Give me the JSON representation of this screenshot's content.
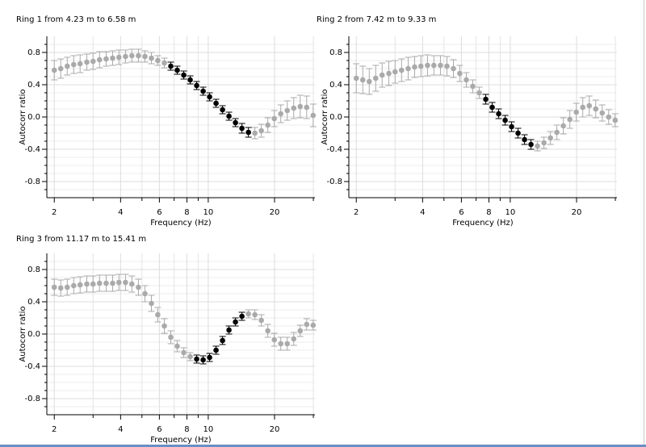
{
  "chart_data": [
    {
      "type": "scatter",
      "title": "Ring 1 from 4.23 m to 6.58 m",
      "xlabel": "Frequency (Hz)",
      "ylabel": "Autocorr ratio",
      "xscale": "log",
      "grid": true,
      "xlim": [
        1.85,
        30.5
      ],
      "ylim": [
        -1.0,
        1.0
      ],
      "xticks": [
        2,
        4,
        6,
        8,
        10,
        20
      ],
      "xminorticks": [
        3,
        5,
        7,
        9,
        30
      ],
      "yticks": [
        -0.8,
        -0.4,
        {
          "value": 0,
          "label": "0.0"
        },
        0.4,
        0.8
      ],
      "yminorticks": [
        -0.9,
        -0.7,
        -0.6,
        -0.5,
        -0.3,
        -0.2,
        -0.1,
        0.1,
        0.2,
        0.3,
        0.5,
        0.6,
        0.7,
        0.9
      ],
      "series": [
        {
          "color": "#aaaaaa",
          "x": [
            2.0,
            2.14,
            2.29,
            2.45,
            2.62,
            2.81,
            3.0,
            3.21,
            3.44,
            3.68,
            3.93,
            4.21,
            4.5,
            4.82,
            5.16,
            5.52,
            5.9,
            6.32,
            16.28,
            17.42,
            18.64,
            19.95,
            21.34,
            22.84,
            24.44,
            26.15,
            27.98,
            29.94
          ],
          "values": [
            0.58,
            0.6,
            0.63,
            0.65,
            0.66,
            0.68,
            0.69,
            0.71,
            0.72,
            0.73,
            0.74,
            0.75,
            0.76,
            0.76,
            0.75,
            0.73,
            0.7,
            0.67,
            -0.2,
            -0.17,
            -0.1,
            -0.02,
            0.04,
            0.08,
            0.11,
            0.13,
            0.12,
            0.02
          ],
          "errors": [
            0.12,
            0.12,
            0.11,
            0.11,
            0.11,
            0.1,
            0.1,
            0.1,
            0.09,
            0.09,
            0.09,
            0.08,
            0.08,
            0.08,
            0.07,
            0.07,
            0.06,
            0.06,
            0.07,
            0.08,
            0.09,
            0.1,
            0.11,
            0.12,
            0.13,
            0.14,
            0.14,
            0.14
          ]
        },
        {
          "color": "#000000",
          "x": [
            6.76,
            7.23,
            7.74,
            8.28,
            8.86,
            9.48,
            10.14,
            10.85,
            11.61,
            12.42,
            13.29,
            14.22,
            15.22
          ],
          "values": [
            0.63,
            0.58,
            0.52,
            0.46,
            0.39,
            0.32,
            0.25,
            0.17,
            0.09,
            0.01,
            -0.07,
            -0.14,
            -0.19
          ],
          "errors": [
            0.05,
            0.05,
            0.05,
            0.05,
            0.05,
            0.05,
            0.05,
            0.05,
            0.05,
            0.05,
            0.05,
            0.06,
            0.06
          ]
        }
      ]
    },
    {
      "type": "scatter",
      "title": "Ring 2 from 7.42 m to 9.33 m",
      "xlabel": "Frequency (Hz)",
      "ylabel": "Autocorr ratio",
      "xscale": "log",
      "grid": true,
      "xlim": [
        1.85,
        30.5
      ],
      "ylim": [
        -1.0,
        1.0
      ],
      "xticks": [
        2,
        4,
        6,
        8,
        10,
        20
      ],
      "xminorticks": [
        3,
        5,
        7,
        9,
        30
      ],
      "yticks": [
        -0.8,
        -0.4,
        {
          "value": 0,
          "label": "0.0"
        },
        0.4,
        0.8
      ],
      "yminorticks": [
        -0.9,
        -0.7,
        -0.6,
        -0.5,
        -0.3,
        -0.2,
        -0.1,
        0.1,
        0.2,
        0.3,
        0.5,
        0.6,
        0.7,
        0.9
      ],
      "series": [
        {
          "color": "#aaaaaa",
          "x": [
            2.0,
            2.14,
            2.29,
            2.45,
            2.62,
            2.81,
            3.0,
            3.21,
            3.44,
            3.68,
            3.93,
            4.21,
            4.5,
            4.82,
            5.16,
            5.52,
            5.9,
            6.32,
            6.76,
            7.23,
            13.29,
            14.22,
            15.22,
            16.28,
            17.42,
            18.64,
            19.95,
            21.34,
            22.84,
            24.44,
            26.15,
            27.98,
            29.94
          ],
          "values": [
            0.48,
            0.46,
            0.44,
            0.48,
            0.52,
            0.54,
            0.56,
            0.58,
            0.6,
            0.62,
            0.63,
            0.64,
            0.64,
            0.64,
            0.63,
            0.6,
            0.54,
            0.46,
            0.38,
            0.3,
            -0.36,
            -0.32,
            -0.26,
            -0.19,
            -0.11,
            -0.03,
            0.06,
            0.12,
            0.14,
            0.1,
            0.05,
            0.0,
            -0.04
          ],
          "errors": [
            0.18,
            0.17,
            0.16,
            0.16,
            0.15,
            0.15,
            0.14,
            0.14,
            0.14,
            0.13,
            0.13,
            0.13,
            0.12,
            0.12,
            0.12,
            0.11,
            0.1,
            0.09,
            0.08,
            0.07,
            0.06,
            0.07,
            0.08,
            0.09,
            0.1,
            0.11,
            0.11,
            0.12,
            0.12,
            0.11,
            0.1,
            0.09,
            0.08
          ]
        },
        {
          "color": "#000000",
          "x": [
            7.74,
            8.28,
            8.86,
            9.48,
            10.14,
            10.85,
            11.61,
            12.42
          ],
          "values": [
            0.22,
            0.12,
            0.04,
            -0.04,
            -0.12,
            -0.2,
            -0.28,
            -0.34
          ],
          "errors": [
            0.06,
            0.06,
            0.06,
            0.06,
            0.06,
            0.06,
            0.06,
            0.06
          ]
        }
      ]
    },
    {
      "type": "scatter",
      "title": "Ring 3 from 11.17 m to 15.41 m",
      "xlabel": "Frequency (Hz)",
      "ylabel": "Autocorr ratio",
      "xscale": "log",
      "grid": true,
      "xlim": [
        1.85,
        30.5
      ],
      "ylim": [
        -1.0,
        1.0
      ],
      "xticks": [
        2,
        4,
        6,
        8,
        10,
        20
      ],
      "xminorticks": [
        3,
        5,
        7,
        9,
        30
      ],
      "yticks": [
        -0.8,
        -0.4,
        {
          "value": 0,
          "label": "0.0"
        },
        0.4,
        0.8
      ],
      "yminorticks": [
        -0.9,
        -0.7,
        -0.6,
        -0.5,
        -0.3,
        -0.2,
        -0.1,
        0.1,
        0.2,
        0.3,
        0.5,
        0.6,
        0.7,
        0.9
      ],
      "series": [
        {
          "color": "#aaaaaa",
          "x": [
            2.0,
            2.14,
            2.29,
            2.45,
            2.62,
            2.81,
            3.0,
            3.21,
            3.44,
            3.68,
            3.93,
            4.21,
            4.5,
            4.82,
            5.16,
            5.52,
            5.9,
            6.32,
            6.76,
            7.23,
            7.74,
            8.28,
            15.22,
            16.28,
            17.42,
            18.64,
            19.95,
            21.34,
            22.84,
            24.44,
            26.15,
            27.98,
            29.94
          ],
          "values": [
            0.58,
            0.57,
            0.58,
            0.6,
            0.61,
            0.62,
            0.62,
            0.63,
            0.63,
            0.63,
            0.64,
            0.64,
            0.62,
            0.58,
            0.5,
            0.38,
            0.24,
            0.1,
            -0.04,
            -0.15,
            -0.23,
            -0.28,
            0.25,
            0.24,
            0.17,
            0.04,
            -0.07,
            -0.12,
            -0.12,
            -0.06,
            0.04,
            0.12,
            0.11
          ],
          "errors": [
            0.1,
            0.1,
            0.1,
            0.1,
            0.1,
            0.1,
            0.1,
            0.1,
            0.1,
            0.1,
            0.1,
            0.1,
            0.1,
            0.1,
            0.1,
            0.1,
            0.09,
            0.09,
            0.08,
            0.07,
            0.06,
            0.05,
            0.05,
            0.06,
            0.07,
            0.08,
            0.08,
            0.08,
            0.08,
            0.08,
            0.07,
            0.07,
            0.06
          ]
        },
        {
          "color": "#000000",
          "x": [
            8.86,
            9.48,
            10.14,
            10.85,
            11.61,
            12.42,
            13.29,
            14.22
          ],
          "values": [
            -0.31,
            -0.32,
            -0.29,
            -0.2,
            -0.08,
            0.05,
            0.15,
            0.22
          ],
          "errors": [
            0.05,
            0.05,
            0.05,
            0.05,
            0.05,
            0.05,
            0.05,
            0.05
          ]
        }
      ]
    }
  ]
}
